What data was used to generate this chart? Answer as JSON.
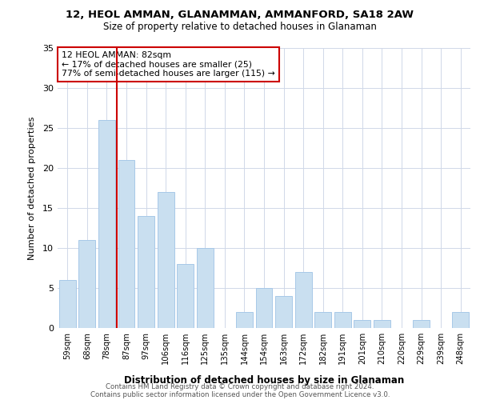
{
  "title": "12, HEOL AMMAN, GLANAMMAN, AMMANFORD, SA18 2AW",
  "subtitle": "Size of property relative to detached houses in Glanaman",
  "xlabel": "Distribution of detached houses by size in Glanaman",
  "ylabel": "Number of detached properties",
  "bar_labels": [
    "59sqm",
    "68sqm",
    "78sqm",
    "87sqm",
    "97sqm",
    "106sqm",
    "116sqm",
    "125sqm",
    "135sqm",
    "144sqm",
    "154sqm",
    "163sqm",
    "172sqm",
    "182sqm",
    "191sqm",
    "201sqm",
    "210sqm",
    "220sqm",
    "229sqm",
    "239sqm",
    "248sqm"
  ],
  "bar_values": [
    6,
    11,
    26,
    21,
    14,
    17,
    8,
    10,
    0,
    2,
    5,
    4,
    7,
    2,
    2,
    1,
    1,
    0,
    1,
    0,
    2
  ],
  "bar_color": "#c9dff0",
  "bar_edgecolor": "#a8c8e8",
  "highlight_line_color": "#cc0000",
  "highlight_after_bin": 2,
  "annotation_line1": "12 HEOL AMMAN: 82sqm",
  "annotation_line2": "← 17% of detached houses are smaller (25)",
  "annotation_line3": "77% of semi-detached houses are larger (115) →",
  "annotation_box_color": "#cc0000",
  "ylim": [
    0,
    35
  ],
  "yticks": [
    0,
    5,
    10,
    15,
    20,
    25,
    30,
    35
  ],
  "footer1": "Contains HM Land Registry data © Crown copyright and database right 2024.",
  "footer2": "Contains public sector information licensed under the Open Government Licence v3.0."
}
